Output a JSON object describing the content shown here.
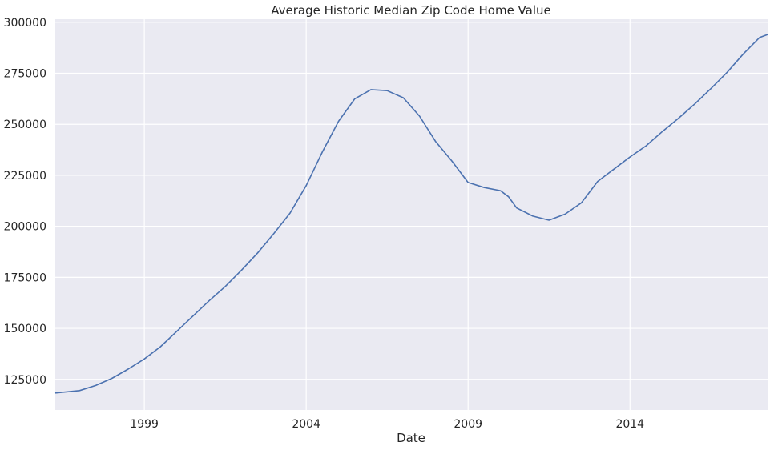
{
  "chart_data": {
    "type": "line",
    "title": "Average Historic Median Zip Code Home Value",
    "xlabel": "Date",
    "ylabel": "",
    "xlim": [
      "1996-04",
      "2018-04"
    ],
    "ylim": [
      110000,
      301500
    ],
    "xticks": [
      "1999",
      "2004",
      "2009",
      "2014"
    ],
    "yticks": [
      125000,
      150000,
      175000,
      200000,
      225000,
      250000,
      275000,
      300000
    ],
    "grid": true,
    "series": [
      {
        "color": "#4c72b0",
        "x": [
          "1996-04",
          "1997-01",
          "1997-07",
          "1998-01",
          "1998-07",
          "1999-01",
          "1999-07",
          "2000-01",
          "2000-07",
          "2001-01",
          "2001-07",
          "2002-01",
          "2002-07",
          "2003-01",
          "2003-07",
          "2004-01",
          "2004-07",
          "2005-01",
          "2005-07",
          "2006-01",
          "2006-07",
          "2007-01",
          "2007-07",
          "2008-01",
          "2008-07",
          "2009-01",
          "2009-07",
          "2010-01",
          "2010-04",
          "2010-07",
          "2011-01",
          "2011-07",
          "2012-01",
          "2012-07",
          "2013-01",
          "2013-07",
          "2014-01",
          "2014-07",
          "2015-01",
          "2015-07",
          "2016-01",
          "2016-07",
          "2017-01",
          "2017-07",
          "2018-01",
          "2018-04"
        ],
        "values": [
          118300,
          119500,
          122000,
          125500,
          130000,
          135000,
          141000,
          148500,
          156000,
          163500,
          170500,
          178500,
          187000,
          196500,
          206500,
          220000,
          236500,
          251500,
          262500,
          267000,
          266500,
          263000,
          254000,
          241500,
          232000,
          221500,
          219000,
          217500,
          214500,
          209000,
          205000,
          203000,
          206000,
          211500,
          222000,
          228000,
          234000,
          239500,
          246500,
          253000,
          260000,
          267500,
          275500,
          284500,
          292500,
          294000
        ]
      }
    ]
  }
}
